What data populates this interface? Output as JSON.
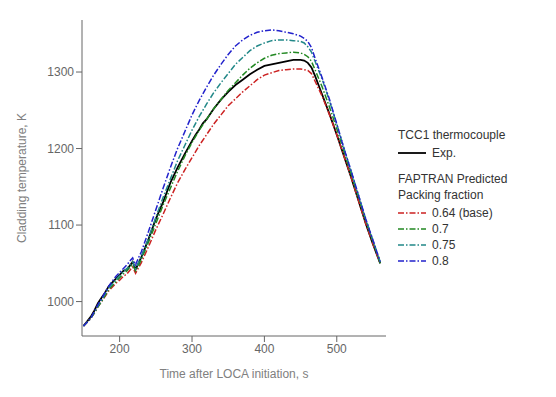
{
  "chart_data": {
    "type": "line",
    "title": "",
    "xlabel": "Time after LOCA initiation, s",
    "ylabel": "Cladding temperature, K",
    "xlim": [
      148,
      568
    ],
    "ylim": [
      955,
      1368
    ],
    "xticks": [
      200,
      300,
      400,
      500
    ],
    "yticks": [
      1000,
      1100,
      1200,
      1300
    ],
    "grid": false,
    "legend": "right",
    "annotations": [
      "TCC1 thermocouple",
      "FAPTRAN Predicted\nPacking fraction"
    ],
    "series": [
      {
        "name": "Exp.",
        "color": "#000000",
        "line_style": "solid",
        "x": [
          150,
          160,
          165,
          170,
          175,
          180,
          185,
          190,
          195,
          200,
          205,
          210,
          215,
          218,
          222,
          226,
          230,
          240,
          250,
          260,
          270,
          280,
          290,
          300,
          305,
          310,
          315,
          320,
          330,
          340,
          350,
          360,
          370,
          380,
          390,
          400,
          410,
          420,
          430,
          440,
          450,
          455,
          460,
          465,
          470,
          480,
          490,
          500,
          510,
          520,
          530,
          540,
          550,
          560
        ],
        "values": [
          968,
          980,
          988,
          998,
          1005,
          1012,
          1020,
          1025,
          1030,
          1035,
          1040,
          1042,
          1048,
          1052,
          1042,
          1050,
          1058,
          1082,
          1108,
          1130,
          1155,
          1175,
          1193,
          1210,
          1218,
          1225,
          1233,
          1238,
          1252,
          1264,
          1274,
          1283,
          1290,
          1297,
          1303,
          1308,
          1310,
          1312,
          1314,
          1316,
          1316,
          1315,
          1312,
          1306,
          1295,
          1270,
          1245,
          1218,
          1190,
          1162,
          1132,
          1102,
          1075,
          1050
        ]
      },
      {
        "name": "0.64 (base)",
        "color": "#cc2222",
        "line_style": "dashdot",
        "x": [
          150,
          160,
          165,
          170,
          175,
          180,
          185,
          190,
          195,
          200,
          205,
          210,
          215,
          218,
          222,
          226,
          230,
          240,
          250,
          260,
          270,
          280,
          290,
          300,
          310,
          320,
          330,
          340,
          350,
          360,
          370,
          380,
          390,
          400,
          410,
          420,
          430,
          440,
          450,
          455,
          460,
          465,
          470,
          480,
          490,
          500,
          510,
          520,
          530,
          540,
          550,
          560
        ],
        "values": [
          968,
          978,
          985,
          993,
          1000,
          1007,
          1014,
          1019,
          1024,
          1028,
          1033,
          1036,
          1042,
          1045,
          1037,
          1044,
          1051,
          1072,
          1094,
          1114,
          1135,
          1155,
          1172,
          1188,
          1204,
          1218,
          1232,
          1244,
          1256,
          1265,
          1274,
          1282,
          1290,
          1296,
          1299,
          1302,
          1303,
          1304,
          1304,
          1303,
          1302,
          1298,
          1288,
          1268,
          1244,
          1218,
          1190,
          1162,
          1132,
          1102,
          1075,
          1050
        ]
      },
      {
        "name": "0.7",
        "color": "#228822",
        "line_style": "dashdot",
        "x": [
          150,
          160,
          165,
          170,
          175,
          180,
          185,
          190,
          195,
          200,
          205,
          210,
          215,
          218,
          222,
          226,
          230,
          240,
          250,
          260,
          270,
          280,
          290,
          300,
          310,
          320,
          330,
          340,
          350,
          360,
          370,
          380,
          390,
          400,
          410,
          420,
          430,
          440,
          450,
          455,
          460,
          465,
          470,
          480,
          490,
          500,
          510,
          520,
          530,
          540,
          550,
          560
        ],
        "values": [
          968,
          978,
          985,
          993,
          1000,
          1008,
          1016,
          1021,
          1026,
          1031,
          1036,
          1040,
          1046,
          1048,
          1040,
          1047,
          1055,
          1078,
          1102,
          1126,
          1148,
          1170,
          1190,
          1208,
          1224,
          1238,
          1252,
          1264,
          1276,
          1286,
          1296,
          1305,
          1312,
          1318,
          1322,
          1324,
          1325,
          1326,
          1325,
          1323,
          1320,
          1314,
          1303,
          1280,
          1254,
          1226,
          1196,
          1166,
          1136,
          1106,
          1078,
          1050
        ]
      },
      {
        "name": "0.75",
        "color": "#228888",
        "line_style": "dashdot",
        "x": [
          150,
          160,
          165,
          170,
          175,
          180,
          185,
          190,
          195,
          200,
          205,
          210,
          215,
          218,
          222,
          226,
          230,
          240,
          250,
          260,
          270,
          280,
          290,
          300,
          310,
          320,
          330,
          340,
          350,
          360,
          370,
          380,
          390,
          400,
          410,
          420,
          430,
          440,
          450,
          455,
          460,
          465,
          470,
          480,
          490,
          500,
          510,
          520,
          530,
          540,
          550,
          560
        ],
        "values": [
          968,
          978,
          986,
          994,
          1002,
          1010,
          1018,
          1023,
          1029,
          1034,
          1039,
          1043,
          1049,
          1052,
          1043,
          1051,
          1059,
          1083,
          1110,
          1136,
          1160,
          1184,
          1204,
          1224,
          1242,
          1258,
          1273,
          1286,
          1298,
          1310,
          1319,
          1328,
          1334,
          1338,
          1341,
          1342,
          1342,
          1341,
          1340,
          1338,
          1333,
          1326,
          1314,
          1290,
          1262,
          1232,
          1200,
          1170,
          1139,
          1108,
          1080,
          1052
        ]
      },
      {
        "name": "0.8",
        "color": "#2222cc",
        "line_style": "dashdot",
        "x": [
          150,
          160,
          165,
          170,
          175,
          180,
          185,
          190,
          195,
          200,
          205,
          210,
          215,
          218,
          222,
          226,
          230,
          240,
          250,
          260,
          270,
          280,
          290,
          300,
          310,
          320,
          330,
          340,
          350,
          360,
          370,
          380,
          390,
          400,
          410,
          420,
          430,
          440,
          450,
          455,
          460,
          465,
          470,
          480,
          490,
          500,
          510,
          520,
          530,
          540,
          550,
          560
        ],
        "values": [
          968,
          978,
          987,
          996,
          1004,
          1012,
          1020,
          1027,
          1033,
          1038,
          1043,
          1048,
          1054,
          1057,
          1048,
          1057,
          1065,
          1092,
          1120,
          1148,
          1175,
          1200,
          1222,
          1244,
          1263,
          1280,
          1296,
          1310,
          1323,
          1334,
          1342,
          1348,
          1352,
          1354,
          1355,
          1354,
          1352,
          1350,
          1347,
          1344,
          1340,
          1332,
          1318,
          1292,
          1264,
          1232,
          1200,
          1170,
          1139,
          1108,
          1080,
          1052
        ]
      }
    ]
  }
}
